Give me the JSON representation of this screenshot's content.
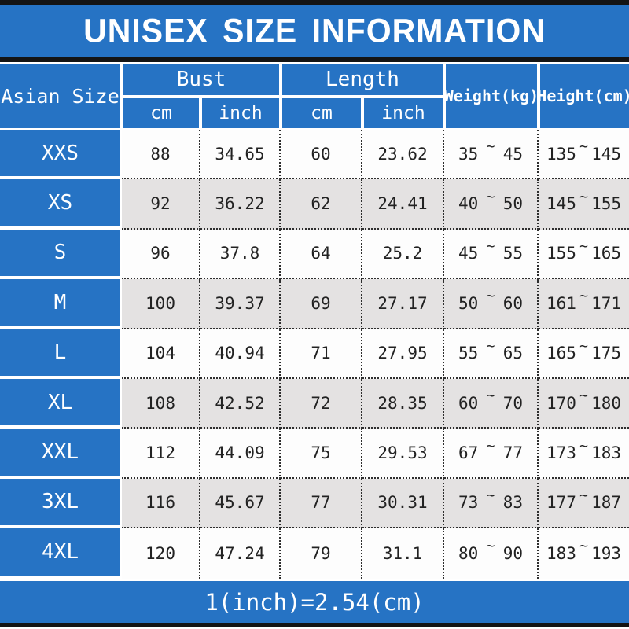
{
  "title": "UNISEX SIZE INFORMATION",
  "footer": "1(inch)=2.54(cm)",
  "colors": {
    "accent_blue": "#2673c4",
    "row_alt_gray": "#e4e2e2",
    "row_white": "#fdfdfd",
    "border_black": "#141414",
    "dotted_border": "#2e2e2e",
    "header_text": "#ffffff",
    "cell_text": "#222222"
  },
  "header": {
    "size_col": "Asian Size",
    "bust": "Bust",
    "length": "Length",
    "cm": "cm",
    "inch": "inch",
    "weight": "Weight(kg)",
    "height": "Height(cm)"
  },
  "range_separator": "~",
  "sizes": [
    {
      "size": "XXS",
      "bust_cm": "88",
      "bust_inch": "34.65",
      "length_cm": "60",
      "length_inch": "23.62",
      "weight_min": "35",
      "weight_max": "45",
      "height_min": "135",
      "height_max": "145"
    },
    {
      "size": "XS",
      "bust_cm": "92",
      "bust_inch": "36.22",
      "length_cm": "62",
      "length_inch": "24.41",
      "weight_min": "40",
      "weight_max": "50",
      "height_min": "145",
      "height_max": "155"
    },
    {
      "size": "S",
      "bust_cm": "96",
      "bust_inch": "37.8",
      "length_cm": "64",
      "length_inch": "25.2",
      "weight_min": "45",
      "weight_max": "55",
      "height_min": "155",
      "height_max": "165"
    },
    {
      "size": "M",
      "bust_cm": "100",
      "bust_inch": "39.37",
      "length_cm": "69",
      "length_inch": "27.17",
      "weight_min": "50",
      "weight_max": "60",
      "height_min": "161",
      "height_max": "171"
    },
    {
      "size": "L",
      "bust_cm": "104",
      "bust_inch": "40.94",
      "length_cm": "71",
      "length_inch": "27.95",
      "weight_min": "55",
      "weight_max": "65",
      "height_min": "165",
      "height_max": "175"
    },
    {
      "size": "XL",
      "bust_cm": "108",
      "bust_inch": "42.52",
      "length_cm": "72",
      "length_inch": "28.35",
      "weight_min": "60",
      "weight_max": "70",
      "height_min": "170",
      "height_max": "180"
    },
    {
      "size": "XXL",
      "bust_cm": "112",
      "bust_inch": "44.09",
      "length_cm": "75",
      "length_inch": "29.53",
      "weight_min": "67",
      "weight_max": "77",
      "height_min": "173",
      "height_max": "183"
    },
    {
      "size": "3XL",
      "bust_cm": "116",
      "bust_inch": "45.67",
      "length_cm": "77",
      "length_inch": "30.31",
      "weight_min": "73",
      "weight_max": "83",
      "height_min": "177",
      "height_max": "187"
    },
    {
      "size": "4XL",
      "bust_cm": "120",
      "bust_inch": "47.24",
      "length_cm": "79",
      "length_inch": "31.1",
      "weight_min": "80",
      "weight_max": "90",
      "height_min": "183",
      "height_max": "193"
    }
  ],
  "chart_data": {
    "type": "table",
    "title": "UNISEX SIZE INFORMATION",
    "footnote": "1(inch)=2.54(cm)",
    "columns": [
      "Asian Size",
      "Bust cm",
      "Bust inch",
      "Length cm",
      "Length inch",
      "Weight(kg)",
      "Height(cm)"
    ],
    "rows": [
      [
        "XXS",
        "88",
        "34.65",
        "60",
        "23.62",
        "35~45",
        "135~145"
      ],
      [
        "XS",
        "92",
        "36.22",
        "62",
        "24.41",
        "40~50",
        "145~155"
      ],
      [
        "S",
        "96",
        "37.8",
        "64",
        "25.2",
        "45~55",
        "155~165"
      ],
      [
        "M",
        "100",
        "39.37",
        "69",
        "27.17",
        "50~60",
        "161~171"
      ],
      [
        "L",
        "104",
        "40.94",
        "71",
        "27.95",
        "55~65",
        "165~175"
      ],
      [
        "XL",
        "108",
        "42.52",
        "72",
        "28.35",
        "60~70",
        "170~180"
      ],
      [
        "XXL",
        "112",
        "44.09",
        "75",
        "29.53",
        "67~77",
        "173~183"
      ],
      [
        "3XL",
        "116",
        "45.67",
        "77",
        "30.31",
        "73~83",
        "177~187"
      ],
      [
        "4XL",
        "120",
        "47.24",
        "79",
        "31.1",
        "80~90",
        "183~193"
      ]
    ]
  }
}
